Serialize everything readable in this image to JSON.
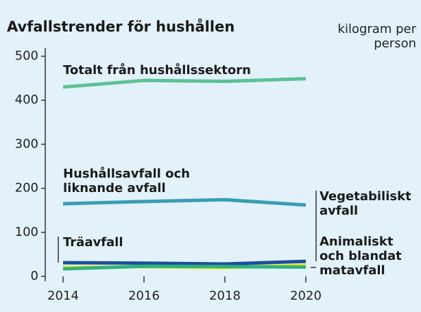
{
  "chart_data": {
    "type": "line",
    "title": "Avfallstrender för hushållen",
    "unit_label": "kilogram per person",
    "x": [
      2014,
      2016,
      2018,
      2020
    ],
    "xlim": [
      2014,
      2020
    ],
    "xticks": [
      2014,
      2016,
      2018,
      2020
    ],
    "ylim": [
      0,
      500
    ],
    "yticks": [
      0,
      100,
      200,
      300,
      400,
      500
    ],
    "series": [
      {
        "name": "Totalt från hushållssektorn",
        "color": "#5cc196",
        "values": [
          430,
          445,
          443,
          449
        ]
      },
      {
        "name": "Hushållsavfall och liknande avfall",
        "color": "#3a9db3",
        "values": [
          165,
          170,
          174,
          162
        ]
      },
      {
        "name": "Träavfall",
        "color": "#1c4f9c",
        "values": [
          31,
          30,
          28,
          34
        ]
      },
      {
        "name": "Vegetabiliskt avfall",
        "color": "#ede600",
        "values": [
          20,
          22,
          20,
          25
        ]
      },
      {
        "name": "Animaliskt och blandat matavfall",
        "color": "#2fb27c",
        "values": [
          17,
          23,
          22,
          21
        ]
      }
    ]
  }
}
